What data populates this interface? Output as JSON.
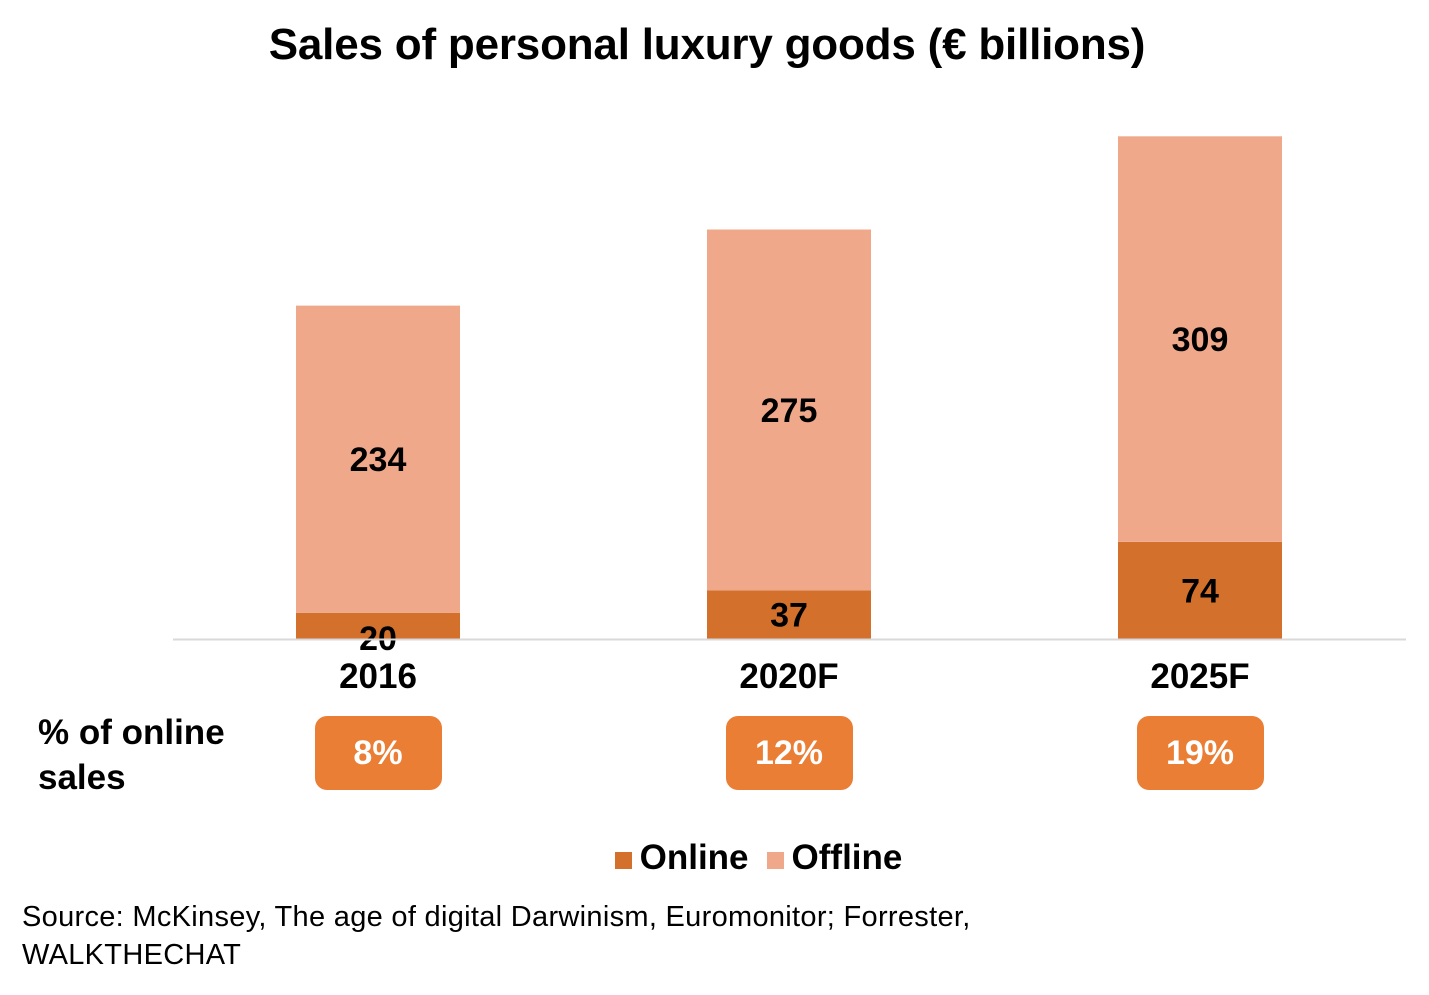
{
  "chart_data": {
    "type": "bar",
    "stacked": true,
    "title": "Sales of personal luxury goods (€ billions)",
    "categories": [
      "2016",
      "2020F",
      "2025F"
    ],
    "series": [
      {
        "name": "Online",
        "values": [
          20,
          37,
          74
        ],
        "color": "#D2702C"
      },
      {
        "name": "Offline",
        "values": [
          234,
          275,
          309
        ],
        "color": "#F0A88A"
      }
    ],
    "xlabel": "",
    "ylabel": "",
    "ylim": [
      0,
      400
    ],
    "grid": false,
    "legend_position": "bottom",
    "online_share": {
      "label": "% of online sales",
      "values": [
        "8%",
        "12%",
        "19%"
      ],
      "color": "#EA7E35"
    },
    "source": "Source: McKinsey, The age of digital Darwinism, Euromonitor; Forrester, WALKTHECHAT"
  }
}
